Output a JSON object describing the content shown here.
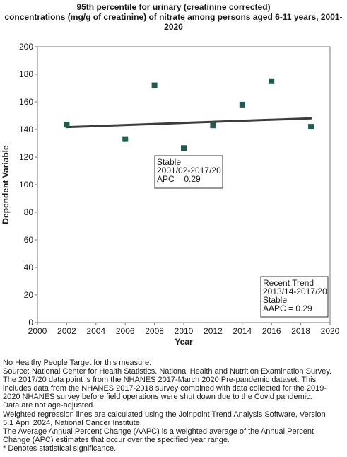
{
  "title_lines": [
    "95th percentile for urinary (creatinine corrected)",
    "concentrations (mg/g of creatinine) of nitrate among  persons aged 6-11 years, 2001-",
    "2020"
  ],
  "chart_data": {
    "type": "scatter",
    "xlabel": "Year",
    "ylabel": "Dependent Variable",
    "xlim": [
      2000,
      2020
    ],
    "ylim": [
      0,
      200
    ],
    "x_ticks": [
      2000,
      2002,
      2004,
      2006,
      2008,
      2010,
      2012,
      2014,
      2016,
      2018,
      2020
    ],
    "y_ticks": [
      0,
      20,
      40,
      60,
      80,
      100,
      120,
      140,
      160,
      180,
      200
    ],
    "grid": false,
    "point_color": "#1f5c4f",
    "line_color": "#3c3c3c",
    "series": [
      {
        "x": [
          2002,
          2006,
          2008,
          2010,
          2012,
          2014,
          2016,
          2018.7
        ],
        "y": [
          143.5,
          133,
          172,
          126.5,
          143,
          158,
          175,
          142
        ]
      }
    ],
    "trend_line": {
      "x": [
        2002,
        2018.7
      ],
      "y": [
        141.7,
        148.1
      ]
    },
    "annotations": [
      {
        "lines": [
          "Stable",
          "2001/02-2017/20",
          "APC =  0.29"
        ]
      },
      {
        "lines": [
          "Recent Trend",
          "2013/14-2017/20",
          "Stable",
          "AAPC =  0.29"
        ]
      }
    ]
  },
  "footnotes": [
    "No Healthy People Target for this measure.",
    "Source: National Center for Health Statistics. National Health and Nutrition Examination Survey.",
    "The 2017/20 data point is from the NHANES 2017-March 2020 Pre-pandemic dataset. This",
    "includes data from the NHANES 2017-2018 survey combined with data collected for the 2019-",
    "2020 NHANES survey before field operations were shut down due to the Covid pandemic.",
    "Data are not age-adjusted.",
    "Weighted regression lines are calculated using the Joinpoint Trend Analysis Software, Version",
    "5.1 April 2024, National Cancer Institute.",
    "The Average Annual Percent Change (AAPC) is a weighted average of the Annual Percent",
    "Change (APC) estimates that occur over the specified year range.",
    "* Denotes statistical significance."
  ]
}
